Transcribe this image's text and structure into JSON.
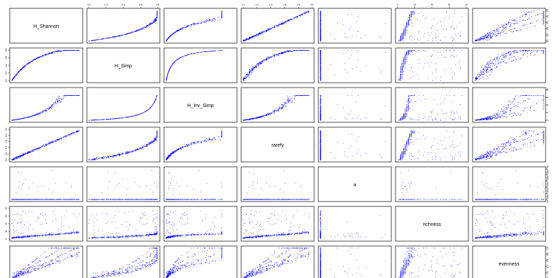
{
  "chart_data": {
    "type": "scatter",
    "plot": "pairs-scatterplot-matrix",
    "point_color": "#0000ff",
    "diagonal_labels": [
      "H_Shannon",
      "H_Simp",
      "H_Inv_Simp",
      "rarefy",
      "a",
      "richness",
      "evenness"
    ],
    "axis_ticks": {
      "top": [
        {
          "column": 2,
          "labels": [
            "0.0",
            "0.2",
            "0.4",
            "0.6",
            "0.8"
          ]
        },
        {
          "column": 4,
          "labels": [
            "1.0",
            "1.2",
            "1.4",
            "1.6",
            "1.8",
            "2.0"
          ]
        },
        {
          "column": 6,
          "labels": [
            "0",
            "10",
            "20",
            "30",
            "40"
          ]
        }
      ],
      "bottom": [
        {
          "column": 1,
          "labels": [
            "0.0",
            "0.5",
            "1.0",
            "1.5",
            "2.0",
            "2.5"
          ]
        },
        {
          "column": 3,
          "labels": [
            "2",
            "4",
            "6",
            "8",
            "10"
          ]
        },
        {
          "column": 5,
          "labels": [
            "0e+00",
            "2e+05",
            "4e+05",
            "6e+05",
            "8e+05",
            "1e+06"
          ]
        },
        {
          "column": 7,
          "labels": [
            "0.0",
            "0.2",
            "0.4",
            "0.6",
            "0.8",
            "1.0"
          ]
        }
      ],
      "left": [
        {
          "row": 2,
          "labels": [
            "0.0",
            "0.2",
            "0.4",
            "0.6",
            "0.8"
          ]
        },
        {
          "row": 4,
          "labels": [
            "1.0",
            "1.2",
            "1.4",
            "1.6",
            "1.8",
            "2.0"
          ]
        },
        {
          "row": 6,
          "labels": [
            "0",
            "10",
            "20",
            "30",
            "40"
          ]
        }
      ],
      "right": [
        {
          "row": 1,
          "labels": [
            "0.0",
            "0.5",
            "1.0",
            "1.5",
            "2.0",
            "2.5"
          ]
        },
        {
          "row": 3,
          "labels": [
            "2",
            "4",
            "6",
            "8",
            "10"
          ]
        },
        {
          "row": 5,
          "labels": [
            "0e+00",
            "2e+05",
            "4e+05",
            "6e+05",
            "8e+05",
            "1e+06"
          ]
        },
        {
          "row": 7,
          "labels": [
            "0.0",
            "0.2",
            "0.4",
            "0.6",
            "0.8",
            "1.0"
          ]
        }
      ]
    },
    "variable_ranges": {
      "H_Shannon": [
        0,
        2.8
      ],
      "H_Simp": [
        0,
        0.9
      ],
      "H_Inv_Simp": [
        1,
        11
      ],
      "rarefy": [
        1,
        2.05
      ],
      "a": [
        0,
        1000000
      ],
      "richness": [
        0,
        45
      ],
      "evenness": [
        0,
        1
      ]
    }
  }
}
